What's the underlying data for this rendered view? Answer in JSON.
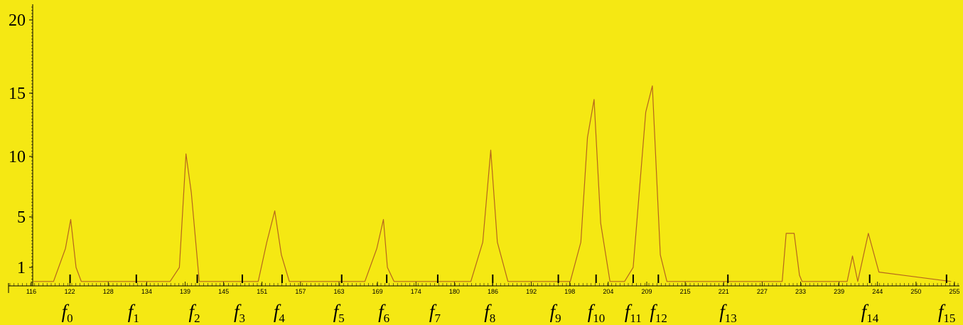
{
  "chart_data": {
    "type": "line",
    "line_color": "#b5651d",
    "background_color": "#f5e813",
    "xlim": [
      116,
      256
    ],
    "ylim": [
      0,
      21
    ],
    "y_baseline": 0.1,
    "x_tick_labels": [
      "116",
      "122",
      "128",
      "134",
      "139",
      "145",
      "151",
      "157",
      "163",
      "169",
      "174",
      "180",
      "186",
      "192",
      "198",
      "204",
      "209",
      "215",
      "221",
      "227",
      "233",
      "239",
      "244",
      "250",
      "255"
    ],
    "y_tick_labels": [
      "1",
      "5",
      "10",
      "15",
      "20"
    ],
    "frequency_markers": [
      {
        "label": "f",
        "sub": "0",
        "x": 122.5
      },
      {
        "label": "f",
        "sub": "1",
        "x": 132.5
      },
      {
        "label": "f",
        "sub": "2",
        "x": 141.7
      },
      {
        "label": "f",
        "sub": "3",
        "x": 148.5
      },
      {
        "label": "f",
        "sub": "4",
        "x": 154.5
      },
      {
        "label": "f",
        "sub": "5",
        "x": 163.5
      },
      {
        "label": "f",
        "sub": "6",
        "x": 170.3
      },
      {
        "label": "f",
        "sub": "7",
        "x": 178.0
      },
      {
        "label": "f",
        "sub": "8",
        "x": 186.3
      },
      {
        "label": "f",
        "sub": "9",
        "x": 196.2
      },
      {
        "label": "f",
        "sub": "10",
        "x": 201.9
      },
      {
        "label": "f",
        "sub": "11",
        "x": 207.5
      },
      {
        "label": "f",
        "sub": "12",
        "x": 211.3
      },
      {
        "label": "f",
        "sub": "13",
        "x": 221.8
      },
      {
        "label": "f",
        "sub": "14",
        "x": 243.2
      },
      {
        "label": "f",
        "sub": "15",
        "x": 254.8
      }
    ],
    "series": [
      {
        "x": [
          117,
          120,
          121.8,
          122.6,
          123.4,
          124.2,
          126,
          137.6,
          139.0,
          140.0,
          140.8,
          142.0,
          143,
          150.9,
          152.2,
          153.4,
          154.4,
          155.6,
          157.6,
          167,
          168.8,
          169.8,
          170.4,
          171.4,
          172.6,
          183,
          184.8,
          186.0,
          187.0,
          188.6,
          198,
          199.6,
          200.6,
          201.6,
          202.6,
          204.0,
          206.2,
          207.5,
          209.4,
          210.4,
          211.6,
          212.6,
          230,
          230.6,
          231.8,
          232.6,
          233.0,
          239.8,
          240.6,
          241.4,
          243.0,
          244.6,
          255.5
        ],
        "y": [
          0.1,
          0.1,
          2.5,
          4.8,
          1.0,
          0.1,
          0.1,
          0.1,
          1.0,
          10.2,
          7.0,
          0.1,
          0.1,
          0.1,
          3.0,
          5.5,
          2.0,
          0.1,
          0.1,
          0.1,
          2.5,
          4.8,
          1.0,
          0.1,
          0.1,
          0.1,
          3.0,
          10.5,
          3.0,
          0.1,
          0.1,
          3.0,
          11.5,
          14.5,
          4.5,
          0.1,
          0.1,
          1.0,
          13.5,
          15.5,
          2.0,
          0.1,
          0.1,
          3.7,
          3.7,
          0.5,
          0.1,
          0.1,
          1.9,
          0.1,
          3.7,
          0.7,
          0.1
        ]
      }
    ]
  }
}
